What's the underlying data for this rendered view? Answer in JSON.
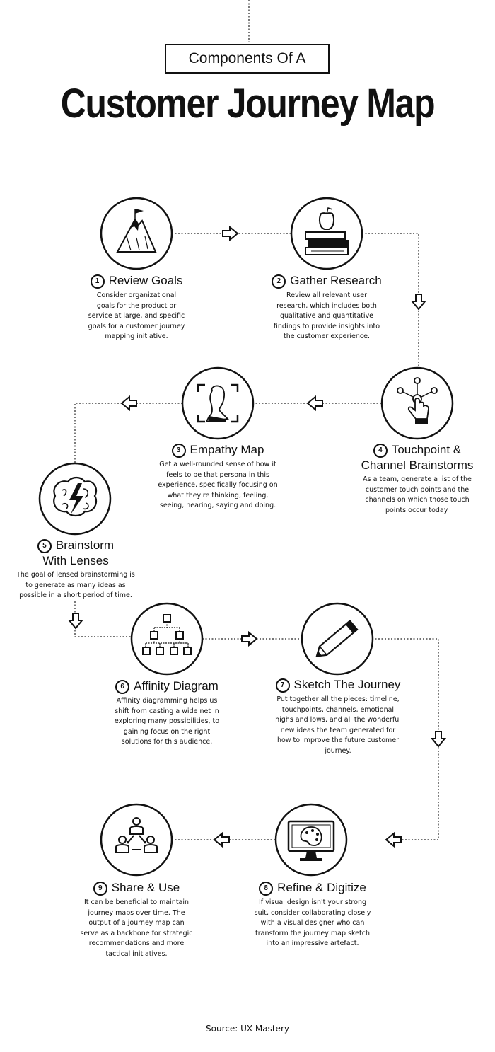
{
  "header": {
    "subtitle": "Components Of A",
    "title": "Customer Journey Map"
  },
  "steps": [
    {
      "number": "1",
      "title": "Review Goals",
      "title2": "",
      "description": "Consider organizational goals for the product or service at large, and specific goals for a customer journey mapping initiative.",
      "icon": "mountain-flag-icon"
    },
    {
      "number": "2",
      "title": "Gather Research",
      "title2": "",
      "description": "Review all relevant user research, which includes both qualitative and quantitative findings to provide insights into the customer experience.",
      "icon": "books-apple-icon"
    },
    {
      "number": "3",
      "title": "Empathy Map",
      "title2": "",
      "description": "Get a well-rounded sense of how it feels to be that persona in this experience, specifically focusing on what they're thinking, feeling, seeing, hearing, saying and doing.",
      "icon": "person-focus-icon"
    },
    {
      "number": "4",
      "title": "Touchpoint &",
      "title2": "Channel Brainstorms",
      "description": "As a team, generate a list of the customer touch points and the channels on which those touch points occur today.",
      "icon": "touch-hand-icon"
    },
    {
      "number": "5",
      "title": "Brainstorm",
      "title2": "With Lenses",
      "description": "The goal of lensed brainstorming is to generate as many ideas as possible in a short period of time.",
      "icon": "brain-lightning-icon"
    },
    {
      "number": "6",
      "title": "Affinity Diagram",
      "title2": "",
      "description": "Affinity diagramming helps us shift from casting a wide net in exploring many possibilities, to gaining focus on the right solutions for this audience.",
      "icon": "hierarchy-icon"
    },
    {
      "number": "7",
      "title": "Sketch The Journey",
      "title2": "",
      "description": "Put together all the pieces: timeline, touchpoints, channels, emotional highs and lows, and all the wonderful new ideas the team generated for how to improve the future customer journey.",
      "icon": "pencil-icon"
    },
    {
      "number": "8",
      "title": "Refine & Digitize",
      "title2": "",
      "description": "If visual design isn't your strong suit, consider collaborating closely with a visual designer who can transform the journey map sketch into an impressive artefact.",
      "icon": "monitor-palette-icon"
    },
    {
      "number": "9",
      "title": "Share & Use",
      "title2": "",
      "description": "It can be beneficial to maintain journey maps over time. The output of a journey map can serve as a backbone for strategic recommendations and more tactical initiatives.",
      "icon": "share-people-icon"
    }
  ],
  "footer": {
    "source": "Source: UX Mastery"
  }
}
